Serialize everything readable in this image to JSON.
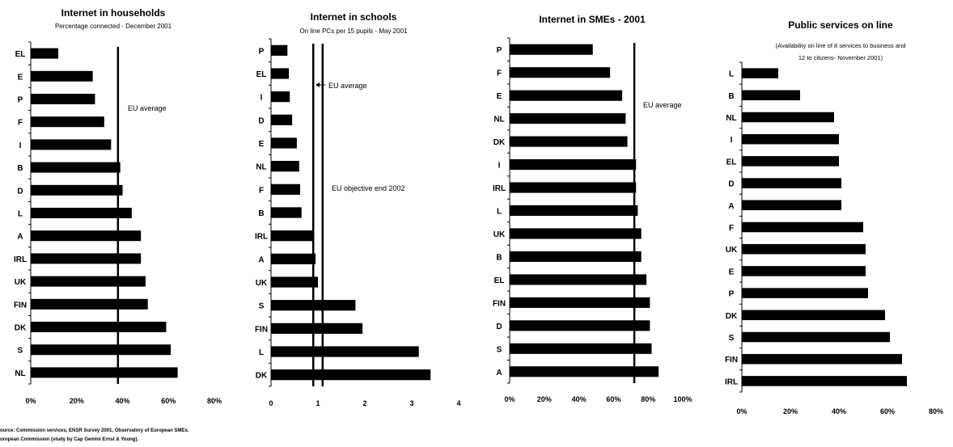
{
  "colors": {
    "bar": "#000000",
    "background": "#ffffff"
  },
  "source_lines": [
    "ource:  Commission services, ENSR Survey 2001, Observatory of European SMEs.",
    "uropean Commission (study by Cap Gemini Ernst & Young)."
  ],
  "chart_data": [
    {
      "type": "bar",
      "orientation": "horizontal",
      "title": "Internet in households",
      "subtitle": "Percentage  connected - December 2001",
      "categories": [
        "EL",
        "E",
        "P",
        "F",
        "I",
        "B",
        "D",
        "L",
        "A",
        "IRL",
        "UK",
        "FIN",
        "DK",
        "S",
        "NL"
      ],
      "values": [
        12,
        27,
        28,
        32,
        35,
        39,
        40,
        44,
        48,
        48,
        50,
        51,
        59,
        61,
        64
      ],
      "xlim": [
        0,
        80
      ],
      "xticks": [
        "0%",
        "20%",
        "40%",
        "60%",
        "80%"
      ],
      "reference_lines": [
        {
          "value": 38,
          "label": "EU average"
        }
      ],
      "grid": false
    },
    {
      "type": "bar",
      "orientation": "horizontal",
      "title": "Internet in schools",
      "subtitle": "On line PCs per 15 pupils - May 2001",
      "categories": [
        "P",
        "EL",
        "I",
        "D",
        "E",
        "NL",
        "F",
        "B",
        "IRL",
        "A",
        "UK",
        "S",
        "FIN",
        "L",
        "DK"
      ],
      "values": [
        0.35,
        0.38,
        0.4,
        0.45,
        0.55,
        0.6,
        0.62,
        0.65,
        0.9,
        0.95,
        1.0,
        1.8,
        1.95,
        3.15,
        3.4
      ],
      "xlim": [
        0,
        4
      ],
      "xticks": [
        "0",
        "1",
        "2",
        "3",
        "4"
      ],
      "reference_lines": [
        {
          "value": 0.9,
          "label": "EU average"
        },
        {
          "value": 1.1,
          "label": "EU objective end 2002"
        }
      ],
      "grid": false
    },
    {
      "type": "bar",
      "orientation": "horizontal",
      "title": "Internet in SMEs - 2001",
      "subtitle": "",
      "categories": [
        "P",
        "F",
        "E",
        "NL",
        "DK",
        "I",
        "IRL",
        "L",
        "UK",
        "B",
        "EL",
        "FIN",
        "D",
        "S",
        "A"
      ],
      "values": [
        48,
        58,
        65,
        67,
        68,
        73,
        73,
        74,
        76,
        76,
        79,
        81,
        81,
        82,
        86
      ],
      "xlim": [
        0,
        100
      ],
      "xticks": [
        "0%",
        "20%",
        "40%",
        "60%",
        "80%",
        "100%"
      ],
      "reference_lines": [
        {
          "value": 72,
          "label": "EU average"
        }
      ],
      "grid": false
    },
    {
      "type": "bar",
      "orientation": "horizontal",
      "title": "Public services on line",
      "subtitle": "(Availability on line of 8 services to business and 12 to citizens- November 2001)",
      "subtitle_lines": [
        "(Availability on line of 8 services to business and",
        "12 to citizens- November 2001)"
      ],
      "categories": [
        "L",
        "B",
        "NL",
        "I",
        "EL",
        "D",
        "A",
        "F",
        "UK",
        "E",
        "P",
        "DK",
        "S",
        "FIN",
        "IRL"
      ],
      "values": [
        15,
        24,
        38,
        40,
        40,
        41,
        41,
        50,
        51,
        51,
        52,
        59,
        61,
        66,
        68
      ],
      "xlim": [
        0,
        80
      ],
      "xticks": [
        "0%",
        "20%",
        "40%",
        "60%",
        "80%"
      ],
      "reference_lines": [],
      "grid": false
    }
  ]
}
